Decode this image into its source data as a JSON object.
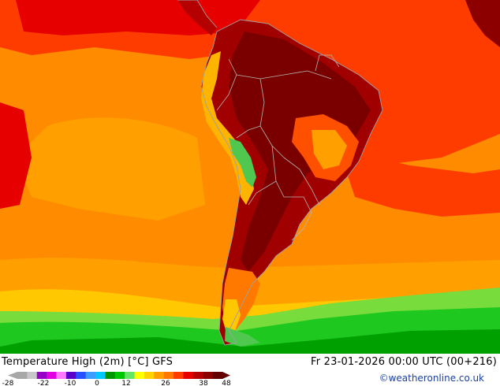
{
  "map": {
    "title": "Temperature High (2m) [°C] GFS",
    "valid_time": "Fr 23-01-2026 00:00 UTC (00+216)",
    "credit": "©weatheronline.co.uk",
    "region": "South America",
    "unit": "°C"
  },
  "legend": {
    "ticks": [
      "-28",
      "-22",
      "-10",
      "0",
      "12",
      "26",
      "38",
      "48"
    ],
    "colors": [
      "#a8a8a8",
      "#c8c8c8",
      "#9600c8",
      "#e000e0",
      "#ff78ff",
      "#5a00c8",
      "#2850ff",
      "#3c9cff",
      "#00c8ff",
      "#009600",
      "#00c800",
      "#64e664",
      "#ffff00",
      "#ffd200",
      "#ffa000",
      "#ff7800",
      "#ff3c00",
      "#e60000",
      "#b40000",
      "#8c0000",
      "#640000"
    ]
  },
  "colors": {
    "ocean_warm": "#ff8c00",
    "ocean_hot": "#ff3c00",
    "land_hot": "#a00000",
    "land_very_hot": "#7a0000",
    "andes": "#ffb400",
    "cold_south": "#1ec81e",
    "credit_text": "#1a3fa0"
  }
}
